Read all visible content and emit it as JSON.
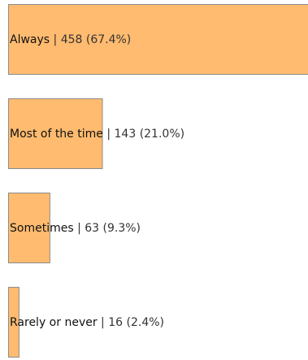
{
  "chart_data": {
    "type": "bar",
    "orientation": "horizontal",
    "title": "",
    "xlabel": "",
    "ylabel": "",
    "grid": false,
    "legend": "none",
    "categories": [
      "Always",
      "Most of the time",
      "Sometimes",
      "Rarely or never"
    ],
    "values": [
      458,
      143,
      63,
      16
    ],
    "percents": [
      "67.4%",
      "21.0%",
      "9.3%",
      "2.4%"
    ],
    "labels": [
      {
        "category": "Always",
        "separator": "|",
        "value": "458 (67.4%)"
      },
      {
        "category": "Most of the time",
        "separator": "|",
        "value": "143 (21.0%)"
      },
      {
        "category": "Sometimes",
        "separator": "|",
        "value": "63 (9.3%)"
      },
      {
        "category": "Rarely or never",
        "separator": "|",
        "value": "16 (2.4%)"
      }
    ],
    "bar_color": "#ffbb6f",
    "bar_border_color": "#8c8c8c"
  }
}
